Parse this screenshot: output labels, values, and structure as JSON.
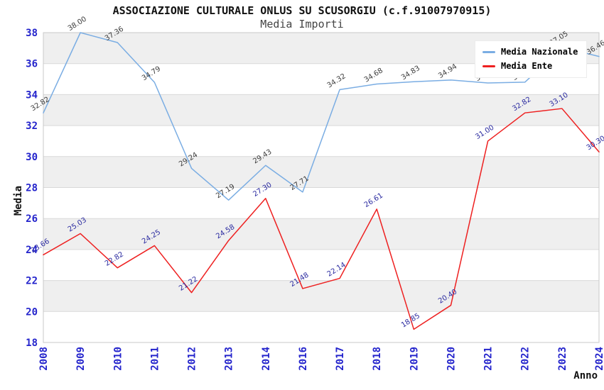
{
  "title": "ASSOCIAZIONE CULTURALE ONLUS SU SCUSORGIU (c.f.91007970915)",
  "subtitle": "Media Importi",
  "legend": {
    "position": "top-right",
    "items": [
      {
        "label": "Media Nazionale",
        "color": "#7aade3"
      },
      {
        "label": "Media Ente",
        "color": "#ee2020"
      }
    ]
  },
  "chart_data": {
    "type": "line",
    "title": "ASSOCIAZIONE CULTURALE ONLUS SU SCUSORGIU (c.f.91007970915)",
    "subtitle": "Media Importi",
    "xlabel": "Anno",
    "ylabel": "Media",
    "x": [
      "2008",
      "2009",
      "2010",
      "2011",
      "2012",
      "2013",
      "2014",
      "2016",
      "2017",
      "2018",
      "2019",
      "2020",
      "2021",
      "2022",
      "2023",
      "2024"
    ],
    "series": [
      {
        "name": "Media Nazionale",
        "color": "#7aade3",
        "label_color": "#3c3c3c",
        "values": [
          32.82,
          38.0,
          37.36,
          34.79,
          29.24,
          27.19,
          29.43,
          27.71,
          34.32,
          34.68,
          34.83,
          34.94,
          34.75,
          34.8,
          37.05,
          36.46
        ]
      },
      {
        "name": "Media Ente",
        "color": "#ee2020",
        "label_color": "#2a2aa0",
        "values": [
          23.66,
          25.03,
          22.82,
          24.25,
          21.22,
          24.58,
          27.3,
          21.48,
          22.14,
          26.61,
          18.85,
          20.4,
          31.0,
          32.82,
          33.1,
          30.3
        ]
      }
    ],
    "ylim": [
      18,
      38
    ],
    "ytick_step": 2,
    "yticks": [
      18,
      20,
      22,
      24,
      26,
      28,
      30,
      32,
      34,
      36,
      38
    ],
    "grid": "horizontal",
    "band_color": "#efefef",
    "gridline_color": "#d9d9d9",
    "plot_border_color": "#c9c9c9",
    "tick_label_color": "#2424cc",
    "legend_position": "top-right",
    "point_label_decimals": 2
  }
}
